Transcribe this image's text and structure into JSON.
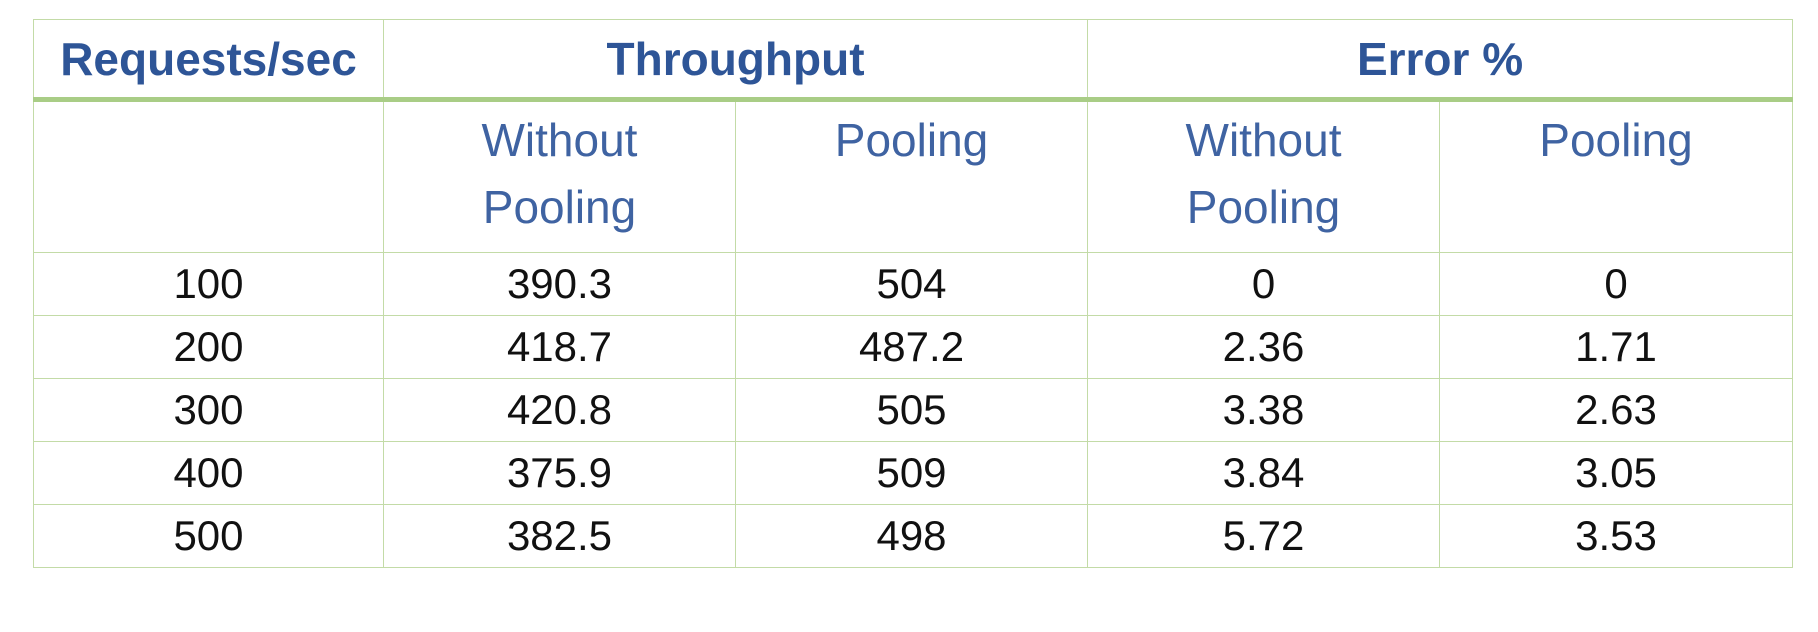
{
  "table": {
    "headers_top": {
      "requests": "Requests/sec",
      "throughput": "Throughput",
      "error": "Error %"
    },
    "headers_sub": {
      "throughput_without": "Without Pooling",
      "throughput_pooling": "Pooling",
      "error_without": "Without Pooling",
      "error_pooling": "Pooling"
    },
    "rows": [
      {
        "requests": "100",
        "tp_without": "390.3",
        "tp_pooling": "504",
        "err_without": "0",
        "err_pooling": "0"
      },
      {
        "requests": "200",
        "tp_without": "418.7",
        "tp_pooling": "487.2",
        "err_without": "2.36",
        "err_pooling": "1.71"
      },
      {
        "requests": "300",
        "tp_without": "420.8",
        "tp_pooling": "505",
        "err_without": "3.38",
        "err_pooling": "2.63"
      },
      {
        "requests": "400",
        "tp_without": "375.9",
        "tp_pooling": "509",
        "err_without": "3.84",
        "err_pooling": "3.05"
      },
      {
        "requests": "500",
        "tp_without": "382.5",
        "tp_pooling": "498",
        "err_without": "5.72",
        "err_pooling": "3.53"
      }
    ]
  },
  "colors": {
    "header_text": "#2e5597",
    "subheader_text": "#3f63a2",
    "border": "#c3dba7",
    "header_rule": "#a9cd86",
    "body_text": "#111111"
  }
}
